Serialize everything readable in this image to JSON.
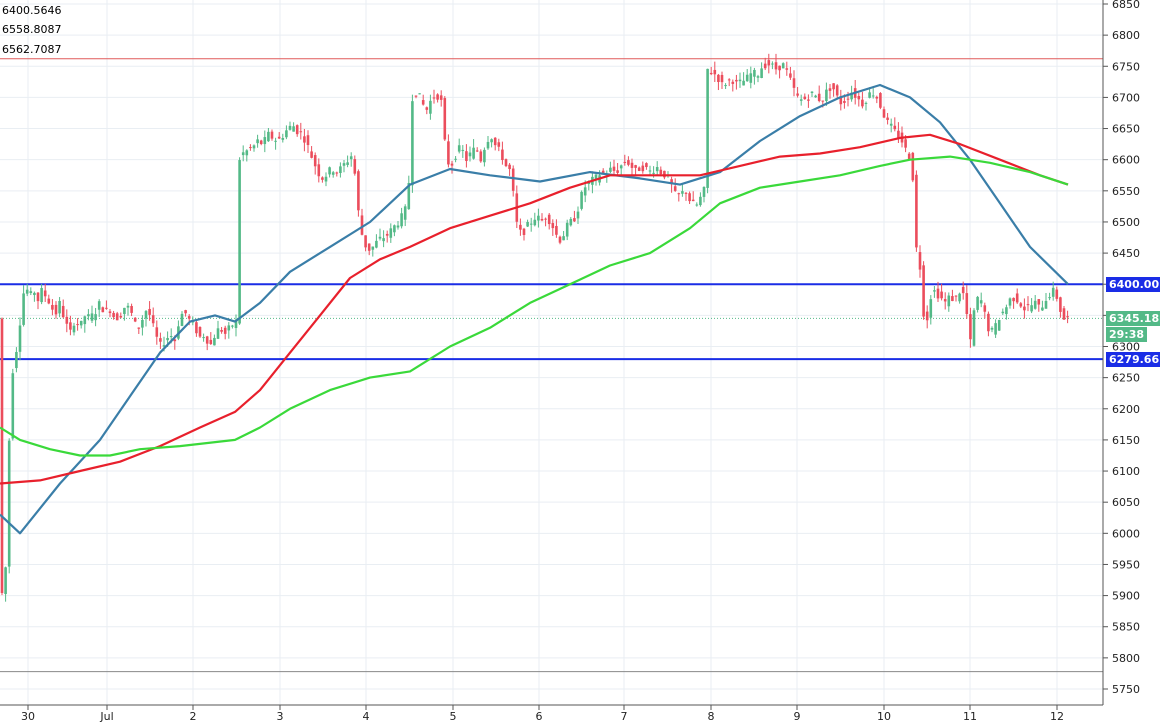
{
  "ma_labels": [
    {
      "value": "6400.5646",
      "color": "#3a7ea8"
    },
    {
      "value": "6558.8087",
      "color": "#e8202c"
    },
    {
      "value": "6562.7087",
      "color": "#3ad93a"
    }
  ],
  "price_tags": {
    "resistance": "6400.00",
    "last": "6345.18",
    "countdown": "29:38",
    "support": "6279.66"
  },
  "colors": {
    "background": "#ffffff",
    "grid": "#e9eef3",
    "axis_text": "#222222",
    "up_candle": "#53b987",
    "down_candle": "#eb4d5c",
    "sma_fast": "#3a7ea8",
    "sma_mid": "#e8202c",
    "sma_slow": "#3ad93a",
    "level_line": "#1a2de6",
    "top_hline": "#e05a5a",
    "bottom_hline": "#888888"
  },
  "chart_data": {
    "type": "line",
    "title": "",
    "x_labels": [
      "30",
      "Jul",
      "2",
      "3",
      "4",
      "5",
      "6",
      "7",
      "8",
      "9",
      "10",
      "11",
      "12"
    ],
    "y_ticks": [
      6850,
      6800,
      6750,
      6700,
      6650,
      6600,
      6550,
      6500,
      6450,
      6400,
      6350,
      6300,
      6250,
      6200,
      6150,
      6100,
      6050,
      6000,
      5950,
      5900,
      5850,
      5800,
      5750
    ],
    "ylim": [
      5730,
      6870
    ],
    "grid": true,
    "horizontal_levels": [
      {
        "name": "resistance",
        "value": 6400.0
      },
      {
        "name": "support",
        "value": 6279.66
      },
      {
        "name": "upper",
        "value": 6762
      },
      {
        "name": "lower",
        "value": 5778
      }
    ],
    "last_price": 6345.18,
    "price_anchors": [
      [
        0,
        5880
      ],
      [
        6,
        5950
      ],
      [
        10,
        6200
      ],
      [
        14,
        6290
      ],
      [
        18,
        6300
      ],
      [
        22,
        6380
      ],
      [
        26,
        6395
      ],
      [
        30,
        6380
      ],
      [
        34,
        6390
      ],
      [
        38,
        6375
      ],
      [
        42,
        6390
      ],
      [
        46,
        6380
      ],
      [
        50,
        6370
      ],
      [
        55,
        6350
      ],
      [
        60,
        6370
      ],
      [
        65,
        6340
      ],
      [
        70,
        6320
      ],
      [
        75,
        6345
      ],
      [
        80,
        6330
      ],
      [
        85,
        6350
      ],
      [
        90,
        6345
      ],
      [
        95,
        6355
      ],
      [
        100,
        6370
      ],
      [
        105,
        6355
      ],
      [
        110,
        6360
      ],
      [
        115,
        6345
      ],
      [
        120,
        6350
      ],
      [
        125,
        6365
      ],
      [
        130,
        6360
      ],
      [
        135,
        6335
      ],
      [
        140,
        6330
      ],
      [
        145,
        6360
      ],
      [
        150,
        6350
      ],
      [
        155,
        6320
      ],
      [
        160,
        6300
      ],
      [
        165,
        6310
      ],
      [
        170,
        6320
      ],
      [
        175,
        6310
      ],
      [
        180,
        6350
      ],
      [
        185,
        6355
      ],
      [
        190,
        6340
      ],
      [
        195,
        6330
      ],
      [
        200,
        6315
      ],
      [
        205,
        6320
      ],
      [
        210,
        6300
      ],
      [
        215,
        6320
      ],
      [
        220,
        6330
      ],
      [
        225,
        6320
      ],
      [
        230,
        6330
      ],
      [
        235,
        6340
      ],
      [
        238,
        6340
      ],
      [
        239,
        6600
      ],
      [
        243,
        6610
      ],
      [
        248,
        6615
      ],
      [
        253,
        6620
      ],
      [
        258,
        6630
      ],
      [
        263,
        6625
      ],
      [
        268,
        6640
      ],
      [
        273,
        6635
      ],
      [
        278,
        6630
      ],
      [
        283,
        6640
      ],
      [
        288,
        6650
      ],
      [
        293,
        6655
      ],
      [
        298,
        6645
      ],
      [
        303,
        6640
      ],
      [
        308,
        6620
      ],
      [
        313,
        6600
      ],
      [
        318,
        6580
      ],
      [
        323,
        6570
      ],
      [
        328,
        6580
      ],
      [
        333,
        6585
      ],
      [
        338,
        6580
      ],
      [
        343,
        6590
      ],
      [
        348,
        6600
      ],
      [
        353,
        6610
      ],
      [
        358,
        6520
      ],
      [
        363,
        6470
      ],
      [
        368,
        6455
      ],
      [
        373,
        6460
      ],
      [
        378,
        6470
      ],
      [
        383,
        6475
      ],
      [
        388,
        6480
      ],
      [
        393,
        6490
      ],
      [
        398,
        6500
      ],
      [
        403,
        6510
      ],
      [
        408,
        6530
      ],
      [
        412,
        6700
      ],
      [
        417,
        6710
      ],
      [
        422,
        6690
      ],
      [
        427,
        6680
      ],
      [
        432,
        6700
      ],
      [
        437,
        6705
      ],
      [
        442,
        6690
      ],
      [
        446,
        6600
      ],
      [
        451,
        6590
      ],
      [
        456,
        6610
      ],
      [
        461,
        6620
      ],
      [
        466,
        6600
      ],
      [
        471,
        6610
      ],
      [
        476,
        6620
      ],
      [
        481,
        6600
      ],
      [
        486,
        6630
      ],
      [
        491,
        6640
      ],
      [
        496,
        6620
      ],
      [
        501,
        6610
      ],
      [
        506,
        6590
      ],
      [
        511,
        6580
      ],
      [
        516,
        6500
      ],
      [
        521,
        6480
      ],
      [
        526,
        6490
      ],
      [
        531,
        6500
      ],
      [
        536,
        6510
      ],
      [
        541,
        6500
      ],
      [
        546,
        6510
      ],
      [
        551,
        6500
      ],
      [
        556,
        6480
      ],
      [
        561,
        6470
      ],
      [
        566,
        6490
      ],
      [
        571,
        6500
      ],
      [
        576,
        6510
      ],
      [
        581,
        6540
      ],
      [
        586,
        6560
      ],
      [
        591,
        6565
      ],
      [
        596,
        6570
      ],
      [
        601,
        6580
      ],
      [
        606,
        6575
      ],
      [
        611,
        6585
      ],
      [
        616,
        6580
      ],
      [
        621,
        6590
      ],
      [
        626,
        6600
      ],
      [
        631,
        6590
      ],
      [
        636,
        6580
      ],
      [
        641,
        6590
      ],
      [
        646,
        6585
      ],
      [
        651,
        6580
      ],
      [
        656,
        6590
      ],
      [
        661,
        6580
      ],
      [
        666,
        6575
      ],
      [
        671,
        6560
      ],
      [
        676,
        6540
      ],
      [
        681,
        6545
      ],
      [
        686,
        6550
      ],
      [
        691,
        6530
      ],
      [
        696,
        6525
      ],
      [
        701,
        6540
      ],
      [
        704,
        6550
      ],
      [
        707,
        6745
      ],
      [
        712,
        6740
      ],
      [
        717,
        6735
      ],
      [
        722,
        6720
      ],
      [
        727,
        6725
      ],
      [
        732,
        6730
      ],
      [
        737,
        6720
      ],
      [
        742,
        6725
      ],
      [
        747,
        6730
      ],
      [
        752,
        6740
      ],
      [
        757,
        6735
      ],
      [
        762,
        6750
      ],
      [
        767,
        6755
      ],
      [
        772,
        6750
      ],
      [
        777,
        6745
      ],
      [
        782,
        6755
      ],
      [
        787,
        6740
      ],
      [
        792,
        6720
      ],
      [
        797,
        6700
      ],
      [
        802,
        6695
      ],
      [
        807,
        6700
      ],
      [
        812,
        6705
      ],
      [
        817,
        6700
      ],
      [
        822,
        6695
      ],
      [
        827,
        6710
      ],
      [
        832,
        6720
      ],
      [
        837,
        6700
      ],
      [
        842,
        6690
      ],
      [
        847,
        6700
      ],
      [
        852,
        6710
      ],
      [
        857,
        6700
      ],
      [
        862,
        6690
      ],
      [
        867,
        6700
      ],
      [
        872,
        6710
      ],
      [
        877,
        6700
      ],
      [
        882,
        6680
      ],
      [
        887,
        6660
      ],
      [
        892,
        6650
      ],
      [
        897,
        6640
      ],
      [
        902,
        6630
      ],
      [
        907,
        6610
      ],
      [
        912,
        6600
      ],
      [
        916,
        6460
      ],
      [
        921,
        6420
      ],
      [
        925,
        6320
      ],
      [
        930,
        6380
      ],
      [
        935,
        6390
      ],
      [
        940,
        6380
      ],
      [
        945,
        6370
      ],
      [
        950,
        6380
      ],
      [
        955,
        6375
      ],
      [
        960,
        6390
      ],
      [
        965,
        6380
      ],
      [
        970,
        6300
      ],
      [
        975,
        6370
      ],
      [
        980,
        6380
      ],
      [
        985,
        6350
      ],
      [
        990,
        6320
      ],
      [
        995,
        6330
      ],
      [
        1000,
        6350
      ],
      [
        1005,
        6360
      ],
      [
        1010,
        6375
      ],
      [
        1015,
        6380
      ],
      [
        1020,
        6370
      ],
      [
        1025,
        6360
      ],
      [
        1030,
        6365
      ],
      [
        1035,
        6370
      ],
      [
        1040,
        6360
      ],
      [
        1045,
        6375
      ],
      [
        1050,
        6385
      ],
      [
        1055,
        6390
      ],
      [
        1060,
        6360
      ],
      [
        1065,
        6340
      ],
      [
        1068,
        6345
      ]
    ],
    "series": [
      {
        "color": "#3a7ea8",
        "points": [
          [
            0,
            6030
          ],
          [
            20,
            6000
          ],
          [
            60,
            6080
          ],
          [
            100,
            6150
          ],
          [
            130,
            6220
          ],
          [
            160,
            6290
          ],
          [
            190,
            6340
          ],
          [
            215,
            6350
          ],
          [
            235,
            6340
          ],
          [
            260,
            6370
          ],
          [
            290,
            6420
          ],
          [
            330,
            6460
          ],
          [
            370,
            6500
          ],
          [
            410,
            6560
          ],
          [
            450,
            6585
          ],
          [
            490,
            6575
          ],
          [
            540,
            6565
          ],
          [
            590,
            6580
          ],
          [
            640,
            6570
          ],
          [
            680,
            6560
          ],
          [
            720,
            6580
          ],
          [
            760,
            6630
          ],
          [
            800,
            6670
          ],
          [
            840,
            6700
          ],
          [
            880,
            6720
          ],
          [
            910,
            6700
          ],
          [
            940,
            6660
          ],
          [
            970,
            6600
          ],
          [
            1000,
            6530
          ],
          [
            1030,
            6460
          ],
          [
            1068,
            6400
          ]
        ]
      },
      {
        "color": "#e8202c",
        "points": [
          [
            0,
            6080
          ],
          [
            40,
            6085
          ],
          [
            80,
            6100
          ],
          [
            120,
            6115
          ],
          [
            160,
            6140
          ],
          [
            200,
            6170
          ],
          [
            235,
            6195
          ],
          [
            260,
            6230
          ],
          [
            290,
            6290
          ],
          [
            320,
            6350
          ],
          [
            350,
            6410
          ],
          [
            380,
            6440
          ],
          [
            410,
            6460
          ],
          [
            450,
            6490
          ],
          [
            490,
            6510
          ],
          [
            530,
            6530
          ],
          [
            570,
            6555
          ],
          [
            610,
            6575
          ],
          [
            650,
            6575
          ],
          [
            700,
            6575
          ],
          [
            740,
            6590
          ],
          [
            780,
            6605
          ],
          [
            820,
            6610
          ],
          [
            860,
            6620
          ],
          [
            900,
            6635
          ],
          [
            930,
            6640
          ],
          [
            960,
            6625
          ],
          [
            1000,
            6600
          ],
          [
            1040,
            6575
          ],
          [
            1068,
            6560
          ]
        ]
      },
      {
        "color": "#3ad93a",
        "points": [
          [
            0,
            6170
          ],
          [
            20,
            6150
          ],
          [
            50,
            6135
          ],
          [
            80,
            6125
          ],
          [
            110,
            6125
          ],
          [
            140,
            6135
          ],
          [
            180,
            6140
          ],
          [
            235,
            6150
          ],
          [
            260,
            6170
          ],
          [
            290,
            6200
          ],
          [
            330,
            6230
          ],
          [
            370,
            6250
          ],
          [
            410,
            6260
          ],
          [
            450,
            6300
          ],
          [
            490,
            6330
          ],
          [
            530,
            6370
          ],
          [
            570,
            6400
          ],
          [
            610,
            6430
          ],
          [
            650,
            6450
          ],
          [
            690,
            6490
          ],
          [
            720,
            6530
          ],
          [
            760,
            6555
          ],
          [
            800,
            6565
          ],
          [
            840,
            6575
          ],
          [
            880,
            6590
          ],
          [
            910,
            6600
          ],
          [
            950,
            6605
          ],
          [
            990,
            6595
          ],
          [
            1030,
            6580
          ],
          [
            1068,
            6560
          ]
        ]
      }
    ]
  }
}
